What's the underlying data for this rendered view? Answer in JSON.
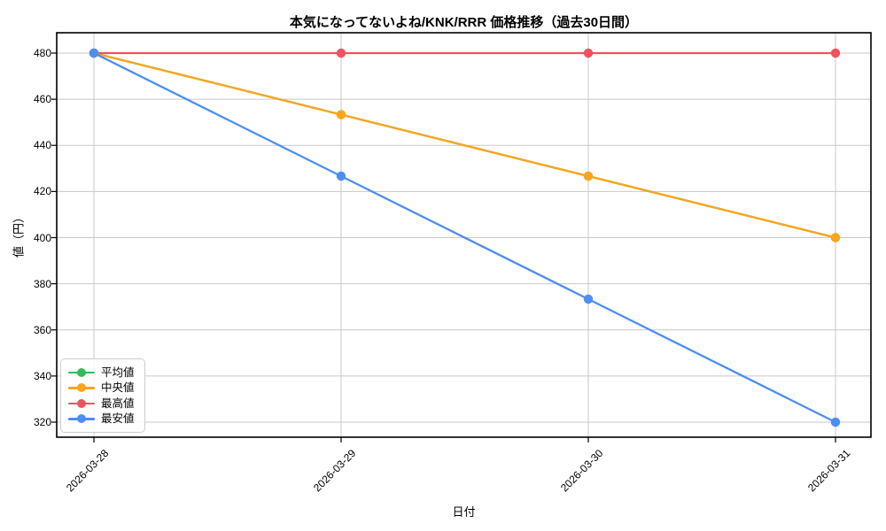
{
  "chart_data": {
    "type": "line",
    "title": "本気になってないよね/KNK/RRR 価格推移（過去30日間）",
    "xlabel": "日付",
    "ylabel": "値（円）",
    "categories": [
      "2026-03-28",
      "2026-03-29",
      "2026-03-30",
      "2026-03-31"
    ],
    "series": [
      {
        "name": "平均値",
        "color": "#2ebd59",
        "values": [
          480,
          453.33,
          426.67,
          400
        ]
      },
      {
        "name": "中央値",
        "color": "#ffa41b",
        "values": [
          480,
          453.33,
          426.67,
          400
        ]
      },
      {
        "name": "最高値",
        "color": "#f2515e",
        "values": [
          480,
          480,
          480,
          480
        ]
      },
      {
        "name": "最安値",
        "color": "#4d8df6",
        "values": [
          480,
          426.67,
          373.33,
          320
        ]
      }
    ],
    "yticks": [
      320,
      340,
      360,
      380,
      400,
      420,
      440,
      460,
      480
    ],
    "ylim": [
      313.5,
      488.8
    ],
    "x_tick_rotation": 45,
    "grid": true,
    "grid_color": "#c8c8c8",
    "legend_position": "lower left",
    "note_mean_hidden_under_median": true
  }
}
